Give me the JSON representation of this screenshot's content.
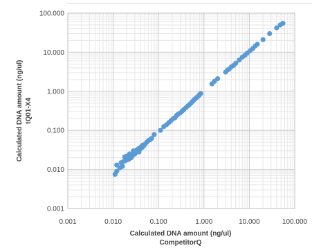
{
  "chart_data": {
    "type": "scatter",
    "title": "",
    "xlabel": "Calculated DNA amount (ng/ul)",
    "xlabel_sub": "CompetitorQ",
    "ylabel": "Calculated DNA amount (ng/ul)",
    "ylabel_sub": "tQ01-X4",
    "x_scale": "log",
    "y_scale": "log",
    "xlim": [
      0.001,
      100
    ],
    "ylim": [
      0.001,
      100
    ],
    "x_ticks": [
      0.001,
      0.01,
      0.1,
      1,
      10,
      100
    ],
    "y_ticks": [
      0.001,
      0.01,
      0.1,
      1,
      10,
      100
    ],
    "x_tick_labels": [
      "0.001",
      "0.010",
      "0.100",
      "1.000",
      "10.000",
      "100.000"
    ],
    "y_tick_labels": [
      "0.001",
      "0.010",
      "0.100",
      "1.000",
      "10.000",
      "100.000"
    ],
    "grid": true,
    "minor_grid": true,
    "legend": "none",
    "marker_color": "#5b9bd5",
    "series": [
      {
        "points": [
          [
            0.011,
            0.0075
          ],
          [
            0.012,
            0.009
          ],
          [
            0.012,
            0.013
          ],
          [
            0.014,
            0.011
          ],
          [
            0.015,
            0.015
          ],
          [
            0.016,
            0.012
          ],
          [
            0.017,
            0.016
          ],
          [
            0.018,
            0.021
          ],
          [
            0.019,
            0.017
          ],
          [
            0.02,
            0.022
          ],
          [
            0.021,
            0.019
          ],
          [
            0.022,
            0.018
          ],
          [
            0.023,
            0.025
          ],
          [
            0.024,
            0.021
          ],
          [
            0.025,
            0.02
          ],
          [
            0.026,
            0.024
          ],
          [
            0.027,
            0.023
          ],
          [
            0.028,
            0.03
          ],
          [
            0.029,
            0.026
          ],
          [
            0.03,
            0.025
          ],
          [
            0.031,
            0.029
          ],
          [
            0.032,
            0.027
          ],
          [
            0.033,
            0.031
          ],
          [
            0.035,
            0.03
          ],
          [
            0.036,
            0.034
          ],
          [
            0.037,
            0.028
          ],
          [
            0.039,
            0.033
          ],
          [
            0.041,
            0.038
          ],
          [
            0.043,
            0.036
          ],
          [
            0.045,
            0.042
          ],
          [
            0.047,
            0.04
          ],
          [
            0.05,
            0.044
          ],
          [
            0.055,
            0.05
          ],
          [
            0.06,
            0.055
          ],
          [
            0.065,
            0.058
          ],
          [
            0.07,
            0.062
          ],
          [
            0.08,
            0.078
          ],
          [
            0.11,
            0.1
          ],
          [
            0.13,
            0.125
          ],
          [
            0.15,
            0.14
          ],
          [
            0.17,
            0.16
          ],
          [
            0.19,
            0.18
          ],
          [
            0.21,
            0.2
          ],
          [
            0.23,
            0.21
          ],
          [
            0.25,
            0.24
          ],
          [
            0.27,
            0.26
          ],
          [
            0.3,
            0.28
          ],
          [
            0.33,
            0.31
          ],
          [
            0.36,
            0.34
          ],
          [
            0.4,
            0.38
          ],
          [
            0.44,
            0.42
          ],
          [
            0.48,
            0.46
          ],
          [
            0.52,
            0.5
          ],
          [
            0.56,
            0.55
          ],
          [
            0.6,
            0.6
          ],
          [
            0.65,
            0.65
          ],
          [
            0.7,
            0.7
          ],
          [
            0.75,
            0.75
          ],
          [
            0.8,
            0.82
          ],
          [
            0.85,
            0.88
          ],
          [
            1.5,
            1.55
          ],
          [
            1.7,
            1.8
          ],
          [
            2.0,
            2.1
          ],
          [
            3.0,
            3.1
          ],
          [
            3.3,
            3.5
          ],
          [
            3.6,
            3.7
          ],
          [
            4.0,
            4.2
          ],
          [
            4.5,
            4.6
          ],
          [
            5.0,
            5.2
          ],
          [
            6.0,
            6.3
          ],
          [
            7.0,
            7.5
          ],
          [
            8.0,
            8.4
          ],
          [
            9.0,
            9.5
          ],
          [
            10.5,
            11.0
          ],
          [
            12.0,
            12.5
          ],
          [
            13.5,
            14.5
          ],
          [
            15.0,
            16.0
          ],
          [
            20.0,
            21.0
          ],
          [
            28.0,
            30.0
          ],
          [
            40.0,
            42.0
          ],
          [
            48.0,
            50.0
          ],
          [
            55.0,
            55.0
          ]
        ]
      }
    ]
  }
}
